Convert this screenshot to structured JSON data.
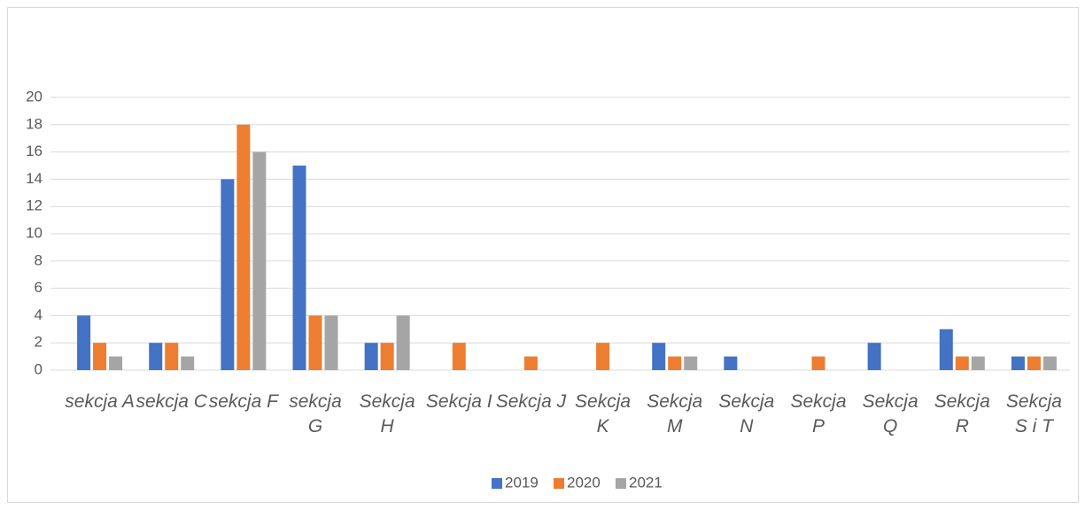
{
  "chart_data": {
    "type": "bar",
    "categories": [
      "sekcja A",
      "sekcja C",
      "sekcja F",
      "sekcja G",
      "Sekcja H",
      "Sekcja I",
      "Sekcja J",
      "Sekcja K",
      "Sekcja M",
      "Sekcja N",
      "Sekcja P",
      "Sekcja Q",
      "Sekcja R",
      "Sekcja S i T"
    ],
    "series": [
      {
        "name": "2019",
        "color": "#4472c4",
        "values": [
          4,
          2,
          14,
          15,
          2,
          0,
          0,
          0,
          2,
          1,
          0,
          2,
          3,
          1
        ]
      },
      {
        "name": "2020",
        "color": "#ed7d31",
        "values": [
          2,
          2,
          18,
          4,
          2,
          2,
          1,
          2,
          1,
          0,
          1,
          0,
          1,
          1
        ]
      },
      {
        "name": "2021",
        "color": "#a5a5a5",
        "values": [
          1,
          1,
          16,
          4,
          4,
          0,
          0,
          0,
          1,
          0,
          0,
          0,
          1,
          1
        ]
      }
    ],
    "ylim": [
      0,
      20
    ],
    "yticks": [
      0,
      2,
      4,
      6,
      8,
      10,
      12,
      14,
      16,
      18,
      20
    ],
    "grid": true,
    "legend": "bottom"
  }
}
